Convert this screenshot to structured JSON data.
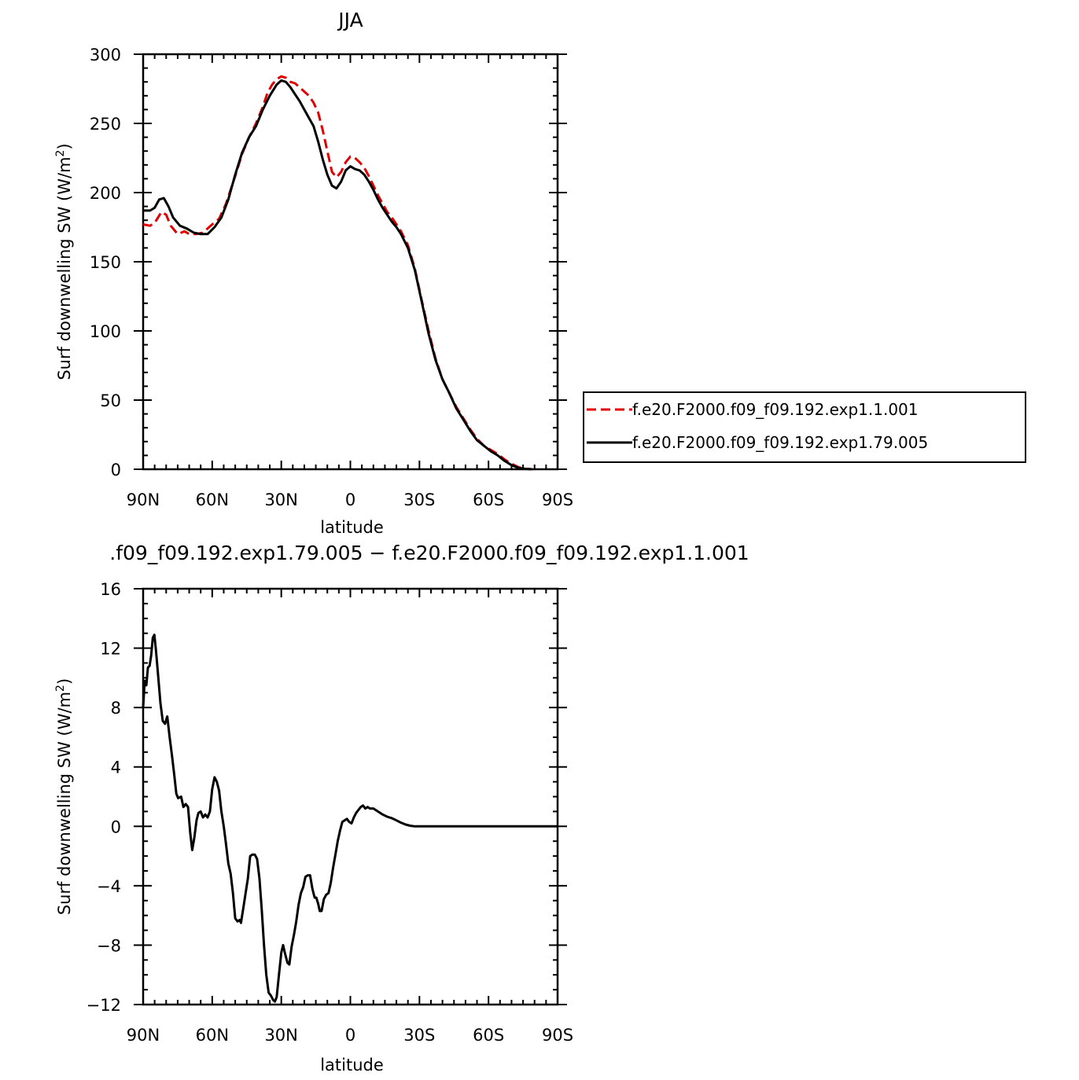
{
  "chart_data": [
    {
      "type": "line",
      "title": "JJA",
      "xlabel": "latitude",
      "ylabel_main": "Surf  downwelling SW  (W/m",
      "ylabel_sup": "2",
      "ylabel_close": ")",
      "xlim": [
        90,
        -90
      ],
      "ylim": [
        0,
        300
      ],
      "x_ticks": [
        90,
        60,
        30,
        0,
        -30,
        -60,
        -90
      ],
      "x_tick_labels": [
        "90N",
        "60N",
        "30N",
        "0",
        "30S",
        "60S",
        "90S"
      ],
      "y_ticks": [
        0,
        50,
        100,
        150,
        200,
        250,
        300
      ],
      "y_tick_labels": [
        "0",
        "50",
        "100",
        "150",
        "200",
        "250",
        "300"
      ],
      "legend_position": "right",
      "series": [
        {
          "name": "f.e20.F2000.f09_f09.192.exp1.1.001",
          "color": "#e00000",
          "dash": "dashed",
          "points": [
            [
              90,
              177
            ],
            [
              87,
              176
            ],
            [
              85,
              178
            ],
            [
              82,
              186
            ],
            [
              80,
              184
            ],
            [
              78,
              176
            ],
            [
              75,
              170
            ],
            [
              72,
              172
            ],
            [
              70,
              170
            ],
            [
              67,
              170
            ],
            [
              64,
              171
            ],
            [
              60,
              177
            ],
            [
              57,
              181
            ],
            [
              54,
              192
            ],
            [
              50,
              212
            ],
            [
              47,
              228
            ],
            [
              44,
              240
            ],
            [
              41,
              250
            ],
            [
              38,
              262
            ],
            [
              36,
              272
            ],
            [
              34,
              278
            ],
            [
              32,
              282
            ],
            [
              30,
              284
            ],
            [
              28,
              283
            ],
            [
              26,
              280
            ],
            [
              24,
              279
            ],
            [
              22,
              276
            ],
            [
              20,
              273
            ],
            [
              18,
              270
            ],
            [
              16,
              265
            ],
            [
              14,
              258
            ],
            [
              12,
              245
            ],
            [
              10,
              230
            ],
            [
              8,
              215
            ],
            [
              6,
              211
            ],
            [
              4,
              215
            ],
            [
              2,
              222
            ],
            [
              0,
              226
            ],
            [
              -2,
              225
            ],
            [
              -4,
              222
            ],
            [
              -6,
              218
            ],
            [
              -8,
              212
            ],
            [
              -10,
              205
            ],
            [
              -12,
              198
            ],
            [
              -14,
              192
            ],
            [
              -16,
              186
            ],
            [
              -18,
              182
            ],
            [
              -20,
              177
            ],
            [
              -22,
              172
            ],
            [
              -25,
              162
            ],
            [
              -28,
              145
            ],
            [
              -31,
              122
            ],
            [
              -34,
              100
            ],
            [
              -37,
              80
            ],
            [
              -40,
              65
            ],
            [
              -43,
              55
            ],
            [
              -46,
              45
            ],
            [
              -49,
              37
            ],
            [
              -52,
              29
            ],
            [
              -55,
              22
            ],
            [
              -58,
              17
            ],
            [
              -61,
              14
            ],
            [
              -64,
              11
            ],
            [
              -67,
              7
            ],
            [
              -70,
              4
            ],
            [
              -73,
              1.5
            ],
            [
              -76,
              0.4
            ],
            [
              -79,
              0
            ]
          ]
        },
        {
          "name": "f.e20.F2000.f09_f09.192.exp1.79.005",
          "color": "#000000",
          "dash": "solid",
          "points": [
            [
              90,
              187
            ],
            [
              87,
              187
            ],
            [
              85,
              189
            ],
            [
              83,
              195
            ],
            [
              81,
              196
            ],
            [
              79,
              190
            ],
            [
              77,
              182
            ],
            [
              74,
              176
            ],
            [
              71,
              174
            ],
            [
              68,
              171
            ],
            [
              65,
              170
            ],
            [
              62,
              170
            ],
            [
              59,
              175
            ],
            [
              56,
              182
            ],
            [
              53,
              195
            ],
            [
              50,
              213
            ],
            [
              47,
              229
            ],
            [
              44,
              240
            ],
            [
              41,
              248
            ],
            [
              38,
              260
            ],
            [
              35,
              270
            ],
            [
              32,
              278
            ],
            [
              30,
              281
            ],
            [
              28,
              280
            ],
            [
              26,
              276
            ],
            [
              24,
              271
            ],
            [
              22,
              266
            ],
            [
              20,
              260
            ],
            [
              18,
              254
            ],
            [
              16,
              248
            ],
            [
              14,
              237
            ],
            [
              12,
              224
            ],
            [
              10,
              213
            ],
            [
              8,
              205
            ],
            [
              6,
              203
            ],
            [
              4,
              208
            ],
            [
              2,
              216
            ],
            [
              0,
              219
            ],
            [
              -2,
              217
            ],
            [
              -4,
              216
            ],
            [
              -6,
              213
            ],
            [
              -8,
              208
            ],
            [
              -10,
              202
            ],
            [
              -12,
              195
            ],
            [
              -14,
              189
            ],
            [
              -16,
              184
            ],
            [
              -18,
              179
            ],
            [
              -20,
              175
            ],
            [
              -22,
              170
            ],
            [
              -25,
              160
            ],
            [
              -28,
              144
            ],
            [
              -31,
              121
            ],
            [
              -34,
              98
            ],
            [
              -37,
              79
            ],
            [
              -40,
              65
            ],
            [
              -43,
              55
            ],
            [
              -46,
              44
            ],
            [
              -49,
              36
            ],
            [
              -52,
              28
            ],
            [
              -55,
              21
            ],
            [
              -58,
              17
            ],
            [
              -61,
              13
            ],
            [
              -64,
              10
            ],
            [
              -67,
              6
            ],
            [
              -70,
              3
            ],
            [
              -73,
              1
            ],
            [
              -76,
              0.3
            ],
            [
              -79,
              0
            ]
          ]
        }
      ]
    },
    {
      "type": "line",
      "title": ".f09_f09.192.exp1.79.005 − f.e20.F2000.f09_f09.192.exp1.1.001",
      "xlabel": "latitude",
      "ylabel_main": "Surf  downwelling SW  (W/m",
      "ylabel_sup": "2",
      "ylabel_close": ")",
      "xlim": [
        90,
        -90
      ],
      "ylim": [
        -12,
        16
      ],
      "x_ticks": [
        90,
        60,
        30,
        0,
        -30,
        -60,
        -90
      ],
      "x_tick_labels": [
        "90N",
        "60N",
        "30N",
        "0",
        "30S",
        "60S",
        "90S"
      ],
      "y_ticks": [
        -12,
        -8,
        -4,
        0,
        4,
        8,
        12,
        16
      ],
      "y_tick_labels": [
        "−12",
        "−8",
        "−4",
        "0",
        "4",
        "8",
        "12",
        "16"
      ],
      "series": [
        {
          "name": "",
          "color": "#000000",
          "dash": "solid",
          "points": [
            [
              90,
              8
            ],
            [
              89.3,
              9.8
            ],
            [
              88.6,
              9.5
            ],
            [
              87.9,
              10.7
            ],
            [
              87.2,
              10.8
            ],
            [
              86.5,
              11.5
            ],
            [
              85.8,
              12.7
            ],
            [
              85.1,
              12.9
            ],
            [
              84.4,
              11.8
            ],
            [
              83.5,
              10.2
            ],
            [
              82.5,
              8.3
            ],
            [
              81.5,
              7.1
            ],
            [
              80.5,
              6.9
            ],
            [
              79.5,
              7.4
            ],
            [
              78.5,
              6.0
            ],
            [
              77.5,
              4.8
            ],
            [
              76.5,
              3.5
            ],
            [
              75.6,
              2.2
            ],
            [
              74.8,
              1.9
            ],
            [
              73.5,
              2.0
            ],
            [
              72.5,
              1.3
            ],
            [
              71.5,
              1.5
            ],
            [
              70.5,
              1.3
            ],
            [
              69.5,
              -0.5
            ],
            [
              68.7,
              -1.6
            ],
            [
              67.8,
              -0.8
            ],
            [
              66.8,
              0.4
            ],
            [
              66.0,
              0.9
            ],
            [
              65.0,
              1.0
            ],
            [
              64.0,
              0.6
            ],
            [
              63.0,
              0.8
            ],
            [
              62.0,
              0.6
            ],
            [
              61.0,
              1.0
            ],
            [
              60.0,
              2.5
            ],
            [
              59.0,
              3.3
            ],
            [
              58.0,
              3.0
            ],
            [
              57.0,
              2.4
            ],
            [
              56.0,
              1.0
            ],
            [
              55.0,
              0.0
            ],
            [
              54.0,
              -1.2
            ],
            [
              53.0,
              -2.5
            ],
            [
              52.0,
              -3.2
            ],
            [
              51.0,
              -4.5
            ],
            [
              50.0,
              -6.2
            ],
            [
              49.0,
              -6.4
            ],
            [
              48.0,
              -6.3
            ],
            [
              47.5,
              -6.5
            ],
            [
              46.5,
              -5.5
            ],
            [
              45.5,
              -4.5
            ],
            [
              44.5,
              -3.5
            ],
            [
              43.5,
              -2.0
            ],
            [
              42.5,
              -1.9
            ],
            [
              41.5,
              -1.9
            ],
            [
              40.5,
              -2.2
            ],
            [
              39.5,
              -3.5
            ],
            [
              38.5,
              -5.6
            ],
            [
              37.5,
              -8.0
            ],
            [
              36.5,
              -10.0
            ],
            [
              35.5,
              -11.2
            ],
            [
              34.5,
              -11.4
            ],
            [
              33.5,
              -11.7
            ],
            [
              32.8,
              -11.8
            ],
            [
              32.0,
              -11.5
            ],
            [
              31.0,
              -10.0
            ],
            [
              30.0,
              -8.5
            ],
            [
              29.2,
              -8.0
            ],
            [
              28.3,
              -8.6
            ],
            [
              27.3,
              -9.2
            ],
            [
              26.5,
              -9.3
            ],
            [
              25.5,
              -8.1
            ],
            [
              24.5,
              -7.3
            ],
            [
              23.5,
              -6.4
            ],
            [
              22.5,
              -5.3
            ],
            [
              21.5,
              -4.5
            ],
            [
              20.5,
              -4.1
            ],
            [
              19.5,
              -3.4
            ],
            [
              18.5,
              -3.3
            ],
            [
              17.5,
              -3.3
            ],
            [
              16.5,
              -4.2
            ],
            [
              15.5,
              -4.8
            ],
            [
              14.8,
              -4.8
            ],
            [
              14.0,
              -5.2
            ],
            [
              13.3,
              -5.7
            ],
            [
              12.5,
              -5.7
            ],
            [
              11.5,
              -4.9
            ],
            [
              10.5,
              -4.6
            ],
            [
              9.5,
              -4.5
            ],
            [
              8.5,
              -3.8
            ],
            [
              7.5,
              -2.8
            ],
            [
              6.5,
              -1.9
            ],
            [
              5.5,
              -1.0
            ],
            [
              4.5,
              -0.3
            ],
            [
              3.5,
              0.3
            ],
            [
              2.5,
              0.4
            ],
            [
              1.5,
              0.5
            ],
            [
              0.5,
              0.3
            ],
            [
              -0.5,
              0.2
            ],
            [
              -1.5,
              0.6
            ],
            [
              -2.5,
              0.9
            ],
            [
              -3.5,
              1.1
            ],
            [
              -4.5,
              1.3
            ],
            [
              -5.5,
              1.4
            ],
            [
              -6.5,
              1.2
            ],
            [
              -7.5,
              1.3
            ],
            [
              -8.5,
              1.2
            ],
            [
              -10,
              1.2
            ],
            [
              -12,
              1.0
            ],
            [
              -14,
              0.8
            ],
            [
              -16,
              0.65
            ],
            [
              -18,
              0.55
            ],
            [
              -20,
              0.4
            ],
            [
              -22,
              0.25
            ],
            [
              -24,
              0.12
            ],
            [
              -26,
              0.04
            ],
            [
              -28,
              0.0
            ],
            [
              -30,
              0.0
            ],
            [
              -40,
              0.0
            ],
            [
              -90,
              0.0
            ]
          ]
        }
      ]
    }
  ]
}
